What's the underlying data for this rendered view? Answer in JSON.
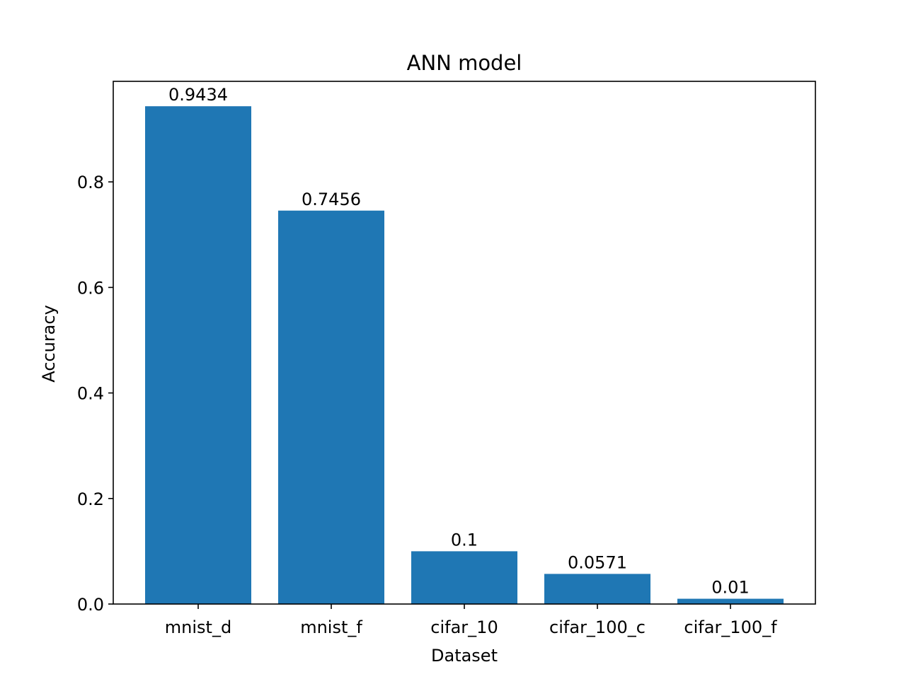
{
  "chart_data": {
    "type": "bar",
    "title": "ANN model",
    "xlabel": "Dataset",
    "ylabel": "Accuracy",
    "categories": [
      "mnist_d",
      "mnist_f",
      "cifar_10",
      "cifar_100_c",
      "cifar_100_f"
    ],
    "values": [
      0.9434,
      0.7456,
      0.1,
      0.0571,
      0.01
    ],
    "data_labels": [
      "0.9434",
      "0.7456",
      "0.1",
      "0.0571",
      "0.01"
    ],
    "yticks": [
      0.0,
      0.2,
      0.4,
      0.6,
      0.8
    ],
    "ytick_labels": [
      "0.0",
      "0.2",
      "0.4",
      "0.6",
      "0.8"
    ],
    "ylim": [
      0,
      0.99057
    ],
    "bar_color": "#1f77b4",
    "grid": false,
    "legend": "none"
  }
}
